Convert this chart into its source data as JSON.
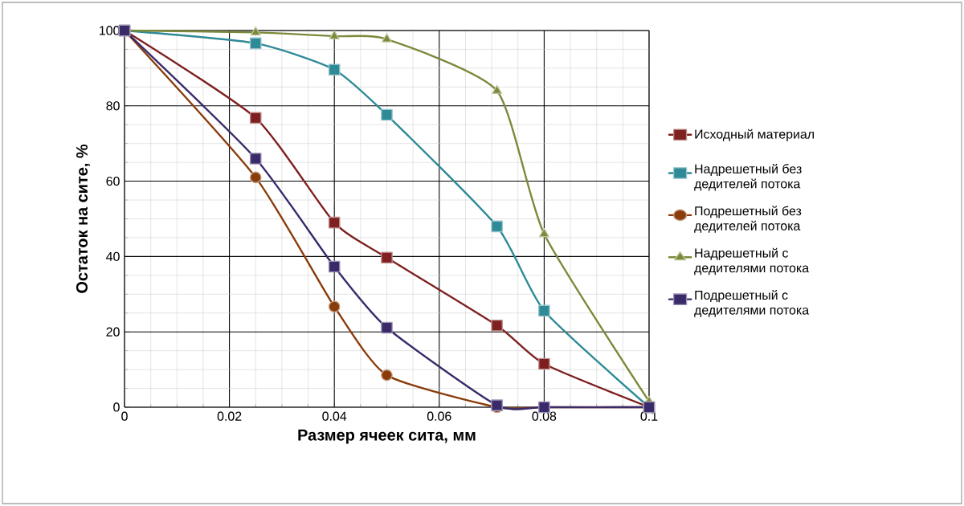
{
  "chart_data": {
    "type": "line",
    "xlabel": "Размер ячеек сита, мм",
    "ylabel": "Остаток на сите, %",
    "x": [
      0,
      0.025,
      0.04,
      0.05,
      0.071,
      0.08,
      0.1
    ],
    "xlim": [
      0,
      0.1
    ],
    "xticks": [
      0,
      0.02,
      0.04,
      0.06,
      0.08,
      0.1
    ],
    "ylim": [
      0,
      100
    ],
    "yticks": [
      0,
      20,
      40,
      60,
      80,
      100
    ],
    "grid": true,
    "legend": "right",
    "line_style": "solid",
    "series": [
      {
        "name": "Исходный материал",
        "color": "#7f2020",
        "marker": "square",
        "values": [
          100,
          76.8,
          49,
          39.7,
          21.7,
          11.5,
          0
        ]
      },
      {
        "name": "Надрешетный без дедителей потока",
        "color": "#2e8a96",
        "marker": "square",
        "values": [
          100,
          96.6,
          89.6,
          77.6,
          48,
          25.6,
          0
        ]
      },
      {
        "name": "Подрешетный без дедителей потока",
        "color": "#8a3c0a",
        "marker": "circle",
        "values": [
          100,
          61,
          26.7,
          8.5,
          0,
          0,
          0
        ]
      },
      {
        "name": "Надрешетный с дедителями потока",
        "color": "#7a8a3a",
        "marker": "triangle",
        "values": [
          100,
          99.5,
          98.5,
          97.7,
          84,
          46,
          1.5
        ]
      },
      {
        "name": "Подрешетный с дедителями потока",
        "color": "#3a2a6a",
        "marker": "square",
        "values": [
          100,
          66,
          37.3,
          21.1,
          0.5,
          0,
          0
        ]
      }
    ]
  }
}
